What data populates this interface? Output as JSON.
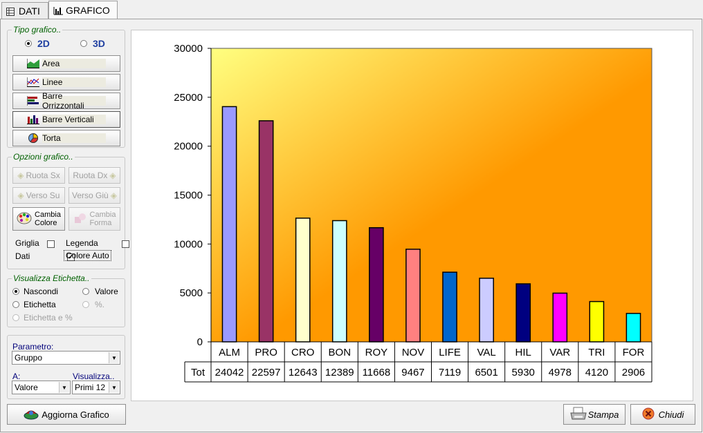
{
  "tabs": [
    {
      "label": "DATI",
      "icon": "table-icon",
      "active": false
    },
    {
      "label": "GRAFICO",
      "icon": "bar-chart-icon",
      "active": true
    }
  ],
  "chart_type_group": {
    "title": "Tipo grafico..",
    "radio_2d": "2D",
    "radio_3d": "3D",
    "selected": "2D",
    "buttons": [
      "Area",
      "Linee",
      "Barre Orrizzontali",
      "Barre Verticali",
      "Torta"
    ]
  },
  "options_group": {
    "title": "Opzioni grafico..",
    "rotate_left": "Ruota Sx",
    "rotate_right": "Ruota Dx",
    "move_up": "Verso Su",
    "move_down": "Verso Giù",
    "change_color_1": "Cambia",
    "change_color_2": "Colore",
    "change_shape_1": "Cambia",
    "change_shape_2": "Forma",
    "grid_label": "Griglia",
    "legend_label": "Legenda",
    "data_label": "Dati",
    "auto_color_label": "Colore Auto",
    "grid_checked": false,
    "legend_checked": false,
    "data_checked": true,
    "auto_color_checked": true
  },
  "labels_group": {
    "title": "Visualizza Etichetta..",
    "hide": "Nascondi",
    "value": "Valore",
    "label": "Etichetta",
    "percent": "%.",
    "label_and_percent": "Etichetta e %",
    "selected": "Nascondi"
  },
  "params": {
    "parametro_label": "Parametro:",
    "parametro_value": "Gruppo",
    "a_label": "A:",
    "a_value": "Valore",
    "visualizza_label": "Visualizza..",
    "visualizza_value": "Primi 12"
  },
  "footer": {
    "refresh": "Aggiorna Grafico",
    "print": "Stampa",
    "close": "Chiudi"
  },
  "chart_data": {
    "type": "bar",
    "categories": [
      "ALM",
      "PRO",
      "CRO",
      "BON",
      "ROY",
      "NOV",
      "LIFE",
      "VAL",
      "HIL",
      "VAR",
      "TRI",
      "FOR"
    ],
    "values": [
      24042,
      22597,
      12643,
      12389,
      11668,
      9467,
      7119,
      6501,
      5930,
      4978,
      4120,
      2906
    ],
    "colors": [
      "#9a9aff",
      "#993366",
      "#ffffcc",
      "#ccffff",
      "#660066",
      "#ff8080",
      "#0066cc",
      "#ccccff",
      "#000080",
      "#ff00ff",
      "#ffff00",
      "#00ffff"
    ],
    "row_label": "Tot",
    "yticks": [
      0,
      5000,
      10000,
      15000,
      20000,
      25000,
      30000
    ],
    "ylim": [
      0,
      30000
    ],
    "grid": false,
    "legend": false,
    "background_gradient": [
      "#ffff80",
      "#ff9900"
    ]
  }
}
